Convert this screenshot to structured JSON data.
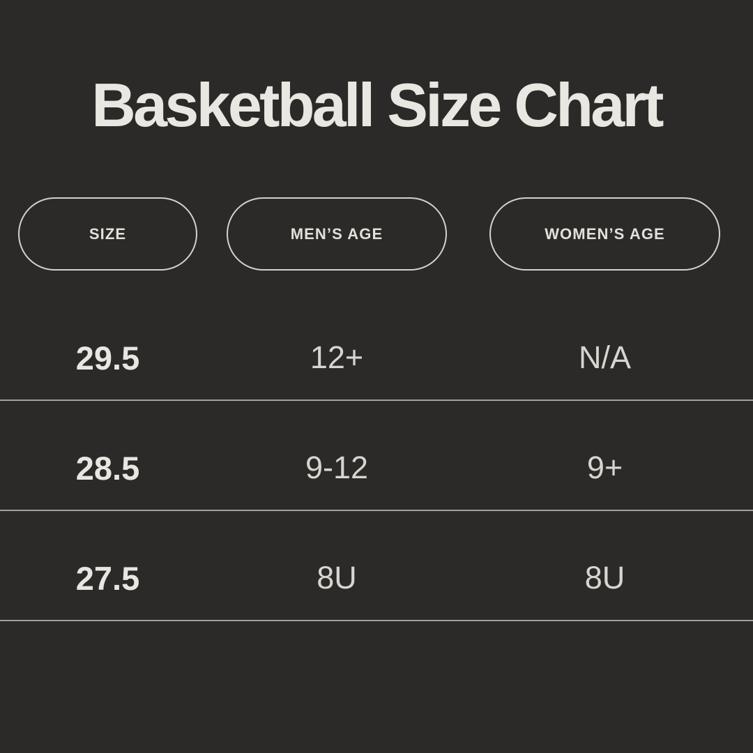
{
  "title": "Basketball Size Chart",
  "columns": [
    {
      "label": "SIZE"
    },
    {
      "label": "MEN’S AGE"
    },
    {
      "label": "WOMEN’S AGE"
    }
  ],
  "rows": [
    {
      "size": "29.5",
      "mens_age": "12+",
      "womens_age": "N/A"
    },
    {
      "size": "28.5",
      "mens_age": "9-12",
      "womens_age": "9+"
    },
    {
      "size": "27.5",
      "mens_age": "8U",
      "womens_age": "8U"
    }
  ],
  "colors": {
    "background": "#2b2a28",
    "title_text": "#e9e7e1",
    "pill_border": "#d4d2cc",
    "row_value_bold": "#e8e6e0",
    "row_value_regular": "#d7d5cf",
    "divider": "#a3a19b"
  },
  "chart_data": {
    "type": "table",
    "title": "Basketball Size Chart",
    "columns": [
      "SIZE",
      "MEN’S AGE",
      "WOMEN’S AGE"
    ],
    "rows": [
      [
        "29.5",
        "12+",
        "N/A"
      ],
      [
        "28.5",
        "9-12",
        "9+"
      ],
      [
        "27.5",
        "8U",
        "8U"
      ]
    ]
  }
}
